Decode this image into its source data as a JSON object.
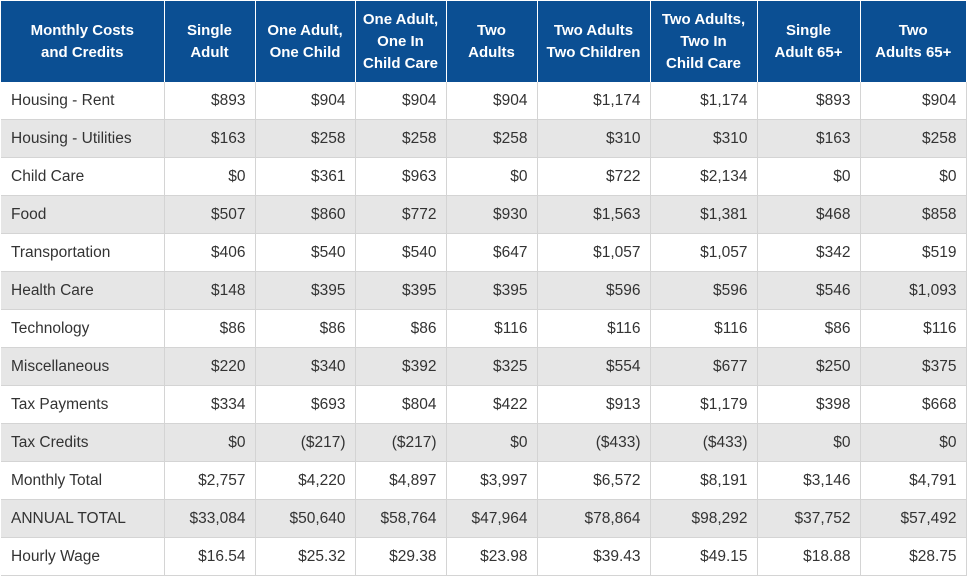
{
  "header": [
    "Monthly Costs\nand Credits",
    "Single\nAdult",
    "One Adult,\nOne Child",
    "One Adult,\nOne In\nChild Care",
    "Two\nAdults",
    "Two Adults\nTwo Children",
    "Two Adults,\nTwo In\nChild Care",
    "Single\nAdult 65+",
    "Two\nAdults 65+"
  ],
  "rows": [
    [
      "Housing - Rent",
      "$893",
      "$904",
      "$904",
      "$904",
      "$1,174",
      "$1,174",
      "$893",
      "$904"
    ],
    [
      "Housing - Utilities",
      "$163",
      "$258",
      "$258",
      "$258",
      "$310",
      "$310",
      "$163",
      "$258"
    ],
    [
      "Child Care",
      "$0",
      "$361",
      "$963",
      "$0",
      "$722",
      "$2,134",
      "$0",
      "$0"
    ],
    [
      "Food",
      "$507",
      "$860",
      "$772",
      "$930",
      "$1,563",
      "$1,381",
      "$468",
      "$858"
    ],
    [
      "Transportation",
      "$406",
      "$540",
      "$540",
      "$647",
      "$1,057",
      "$1,057",
      "$342",
      "$519"
    ],
    [
      "Health Care",
      "$148",
      "$395",
      "$395",
      "$395",
      "$596",
      "$596",
      "$546",
      "$1,093"
    ],
    [
      "Technology",
      "$86",
      "$86",
      "$86",
      "$116",
      "$116",
      "$116",
      "$86",
      "$116"
    ],
    [
      "Miscellaneous",
      "$220",
      "$340",
      "$392",
      "$325",
      "$554",
      "$677",
      "$250",
      "$375"
    ],
    [
      "Tax Payments",
      "$334",
      "$693",
      "$804",
      "$422",
      "$913",
      "$1,179",
      "$398",
      "$668"
    ],
    [
      "Tax Credits",
      "$0",
      "($217)",
      "($217)",
      "$0",
      "($433)",
      "($433)",
      "$0",
      "$0"
    ],
    [
      "Monthly Total",
      "$2,757",
      "$4,220",
      "$4,897",
      "$3,997",
      "$6,572",
      "$8,191",
      "$3,146",
      "$4,791"
    ],
    [
      "ANNUAL TOTAL",
      "$33,084",
      "$50,640",
      "$58,764",
      "$47,964",
      "$78,864",
      "$98,292",
      "$37,752",
      "$57,492"
    ],
    [
      "Hourly Wage",
      "$16.54",
      "$25.32",
      "$29.38",
      "$23.98",
      "$39.43",
      "$49.15",
      "$18.88",
      "$28.75"
    ]
  ],
  "colors": {
    "header_bg": "#0b4f93",
    "stripe": "#e6e6e6",
    "text": "#333333"
  }
}
